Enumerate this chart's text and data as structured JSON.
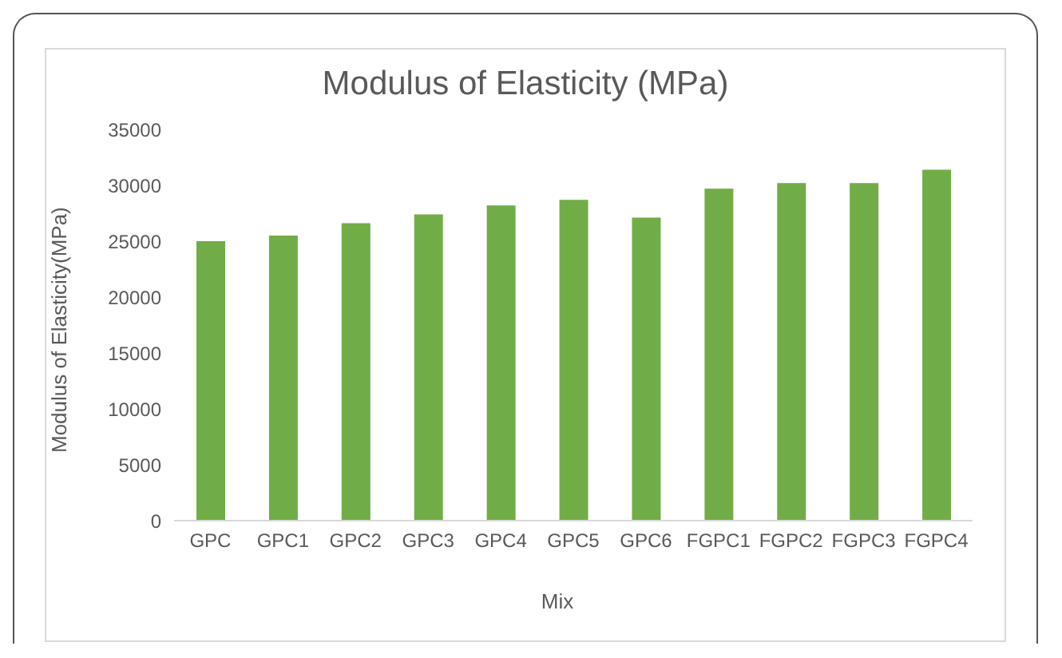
{
  "chart_data": {
    "type": "bar",
    "title": "Modulus of Elasticity (MPa)",
    "xlabel": "Mix",
    "ylabel": "Modulus of Elasticity(MPa)",
    "categories": [
      "GPC",
      "GPC1",
      "GPC2",
      "GPC3",
      "GPC4",
      "GPC5",
      "GPC6",
      "FGPC1",
      "FGPC2",
      "FGPC3",
      "FGPC4"
    ],
    "values": [
      25000,
      25500,
      26600,
      27400,
      28200,
      28700,
      27100,
      29700,
      30200,
      30200,
      31400
    ],
    "color": "#70ad47",
    "ylim": [
      0,
      35000
    ],
    "yticks": [
      0,
      5000,
      10000,
      15000,
      20000,
      25000,
      30000,
      35000
    ],
    "grid": false
  }
}
